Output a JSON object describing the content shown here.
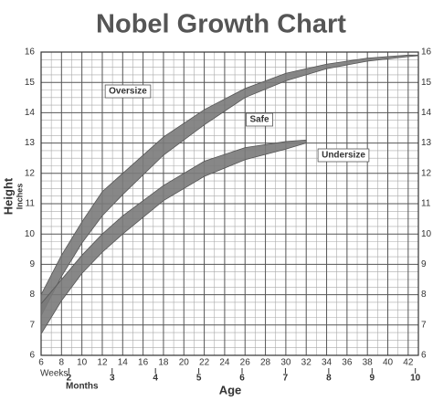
{
  "chart_data": {
    "type": "band",
    "title": "Nobel Growth Chart",
    "y_label": "Height",
    "y_unit_label": "Inches",
    "x_label": "Age",
    "x_unit_label": "Weeks",
    "x2_unit_label": "Months",
    "xlim": [
      6,
      43
    ],
    "xticks": [
      6,
      8,
      10,
      12,
      14,
      16,
      18,
      20,
      22,
      24,
      26,
      28,
      30,
      32,
      34,
      36,
      38,
      40,
      42
    ],
    "x2lim": [
      1.36,
      10.07
    ],
    "x2ticks": [
      2,
      3,
      4,
      5,
      6,
      7,
      8,
      9,
      10
    ],
    "ylim": [
      6,
      16
    ],
    "yticks": [
      6,
      7,
      8,
      9,
      10,
      11,
      12,
      13,
      14,
      15,
      16
    ],
    "grid": true,
    "minor_grid": true,
    "series": [
      {
        "color": "#7a7a7a",
        "x": [
          6,
          8,
          10,
          12,
          14,
          18,
          22,
          26,
          30,
          34,
          38,
          42,
          43
        ],
        "upper": [
          8.0,
          9.3,
          10.4,
          11.4,
          12.0,
          13.2,
          14.1,
          14.8,
          15.3,
          15.6,
          15.8,
          15.9,
          15.9
        ],
        "lower": [
          7.3,
          8.6,
          9.7,
          10.6,
          11.3,
          12.6,
          13.6,
          14.5,
          15.05,
          15.45,
          15.7,
          15.85,
          15.88
        ]
      },
      {
        "color": "#7a7a7a",
        "x": [
          6,
          8,
          10,
          12,
          14,
          18,
          22,
          26,
          30,
          32
        ],
        "upper": [
          7.7,
          8.5,
          9.3,
          10.0,
          10.6,
          11.6,
          12.4,
          12.85,
          13.05,
          13.1
        ],
        "lower": [
          6.7,
          7.8,
          8.7,
          9.4,
          10.0,
          11.1,
          11.9,
          12.45,
          12.8,
          13.0
        ]
      }
    ],
    "annotations": [
      "Oversize",
      "Safe",
      "Undersize"
    ]
  }
}
